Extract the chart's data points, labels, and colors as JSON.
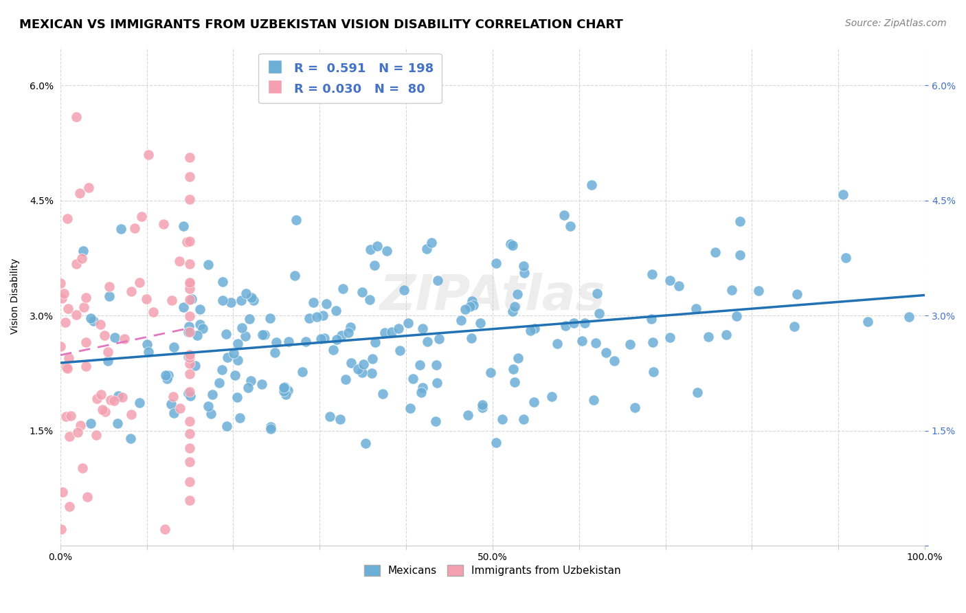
{
  "title": "MEXICAN VS IMMIGRANTS FROM UZBEKISTAN VISION DISABILITY CORRELATION CHART",
  "source": "Source: ZipAtlas.com",
  "ylabel": "Vision Disability",
  "xlabel": "",
  "xlim": [
    0,
    1.0
  ],
  "ylim": [
    0,
    0.065
  ],
  "yticks": [
    0.0,
    0.015,
    0.03,
    0.045,
    0.06
  ],
  "ytick_labels": [
    "",
    "1.5%",
    "3.0%",
    "4.5%",
    "6.0%"
  ],
  "xticks": [
    0.0,
    0.1,
    0.2,
    0.3,
    0.4,
    0.5,
    0.6,
    0.7,
    0.8,
    0.9,
    1.0
  ],
  "xtick_labels": [
    "0.0%",
    "",
    "",
    "",
    "",
    "50.0%",
    "",
    "",
    "",
    "",
    "100.0%"
  ],
  "blue_color": "#6baed6",
  "pink_color": "#f4a0b0",
  "blue_line_color": "#2171b5",
  "pink_line_color": "#e377c2",
  "r_blue": 0.591,
  "n_blue": 198,
  "r_pink": 0.03,
  "n_pink": 80,
  "legend_label_blue": "Mexicans",
  "legend_label_pink": "Immigrants from Uzbekistan",
  "watermark": "ZIPAtlas",
  "title_fontsize": 13,
  "source_fontsize": 10,
  "label_fontsize": 10,
  "tick_fontsize": 10
}
